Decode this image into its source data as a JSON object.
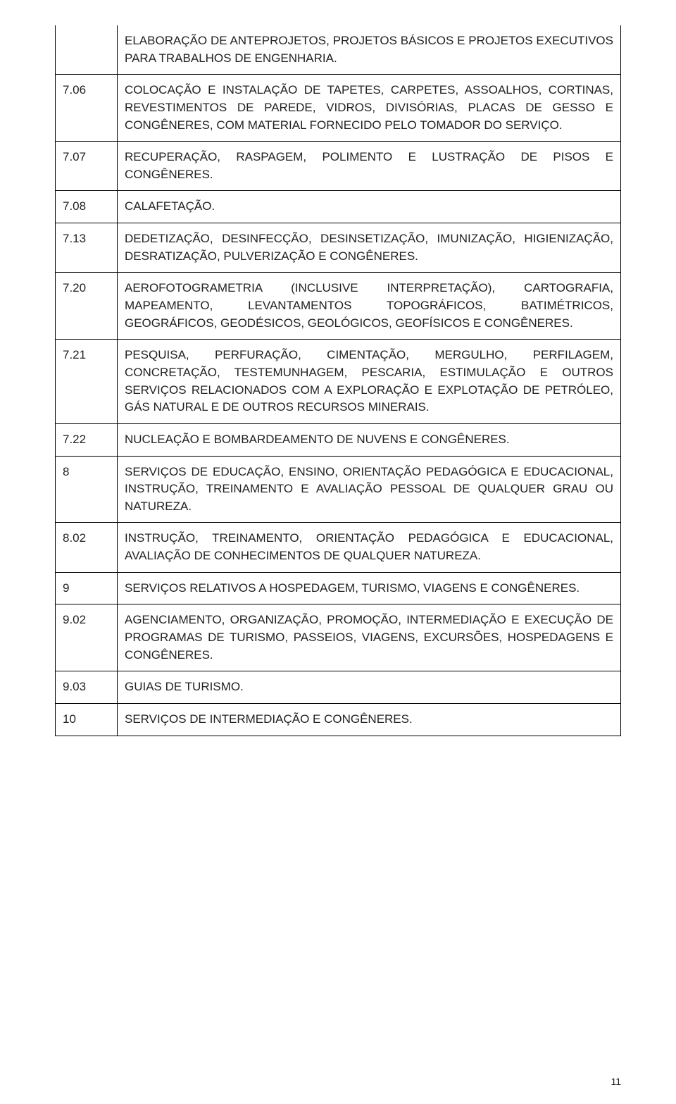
{
  "page_number": "11",
  "header_desc": "ELABORAÇÃO DE ANTEPROJETOS, PROJETOS BÁSICOS E PROJETOS EXECUTIVOS PARA TRABALHOS DE ENGENHARIA.",
  "rows": [
    {
      "code": "7.06",
      "desc": "COLOCAÇÃO E INSTALAÇÃO DE TAPETES, CARPETES, ASSOALHOS, CORTINAS, REVESTIMENTOS DE PAREDE, VIDROS, DIVISÓRIAS, PLACAS DE GESSO E CONGÊNERES, COM MATERIAL FORNECIDO PELO TOMADOR DO SERVIÇO."
    },
    {
      "code": "7.07",
      "desc": "RECUPERAÇÃO, RASPAGEM, POLIMENTO E LUSTRAÇÃO DE PISOS E CONGÊNERES."
    },
    {
      "code": "7.08",
      "desc": "CALAFETAÇÃO."
    },
    {
      "code": "7.13",
      "desc": "DEDETIZAÇÃO, DESINFECÇÃO, DESINSETIZAÇÃO, IMUNIZAÇÃO, HIGIENIZAÇÃO, DESRATIZAÇÃO, PULVERIZAÇÃO E CONGÊNERES."
    },
    {
      "code": "7.20",
      "desc": "AEROFOTOGRAMETRIA (INCLUSIVE INTERPRETAÇÃO), CARTOGRAFIA, MAPEAMENTO, LEVANTAMENTOS TOPOGRÁFICOS, BATIMÉTRICOS, GEOGRÁFICOS, GEODÉSICOS, GEOLÓGICOS, GEOFÍSICOS E CONGÊNERES."
    },
    {
      "code": "7.21",
      "desc": "PESQUISA, PERFURAÇÃO, CIMENTAÇÃO, MERGULHO, PERFILAGEM, CONCRETAÇÃO, TESTEMUNHAGEM, PESCARIA, ESTIMULAÇÃO E OUTROS SERVIÇOS RELACIONADOS COM A EXPLORAÇÃO E EXPLOTAÇÃO DE PETRÓLEO, GÁS NATURAL E DE OUTROS RECURSOS MINERAIS."
    },
    {
      "code": "7.22",
      "desc": "NUCLEAÇÃO E BOMBARDEAMENTO DE NUVENS E CONGÊNERES."
    },
    {
      "code": "8",
      "desc": "SERVIÇOS DE EDUCAÇÃO, ENSINO, ORIENTAÇÃO PEDAGÓGICA E EDUCACIONAL, INSTRUÇÃO, TREINAMENTO E AVALIAÇÃO PESSOAL DE QUALQUER GRAU OU NATUREZA."
    },
    {
      "code": "8.02",
      "desc": "INSTRUÇÃO, TREINAMENTO, ORIENTAÇÃO PEDAGÓGICA E EDUCACIONAL, AVALIAÇÃO DE CONHECIMENTOS DE QUALQUER NATUREZA."
    },
    {
      "code": "9",
      "desc": "SERVIÇOS RELATIVOS A HOSPEDAGEM, TURISMO, VIAGENS E CONGÊNERES."
    },
    {
      "code": "9.02",
      "desc": "AGENCIAMENTO, ORGANIZAÇÃO, PROMOÇÃO, INTERMEDIAÇÃO E EXECUÇÃO DE PROGRAMAS DE TURISMO, PASSEIOS, VIAGENS, EXCURSÕES, HOSPEDAGENS E CONGÊNERES."
    },
    {
      "code": "9.03",
      "desc": "GUIAS DE TURISMO."
    },
    {
      "code": "10",
      "desc": "SERVIÇOS DE INTERMEDIAÇÃO E CONGÊNERES."
    }
  ]
}
